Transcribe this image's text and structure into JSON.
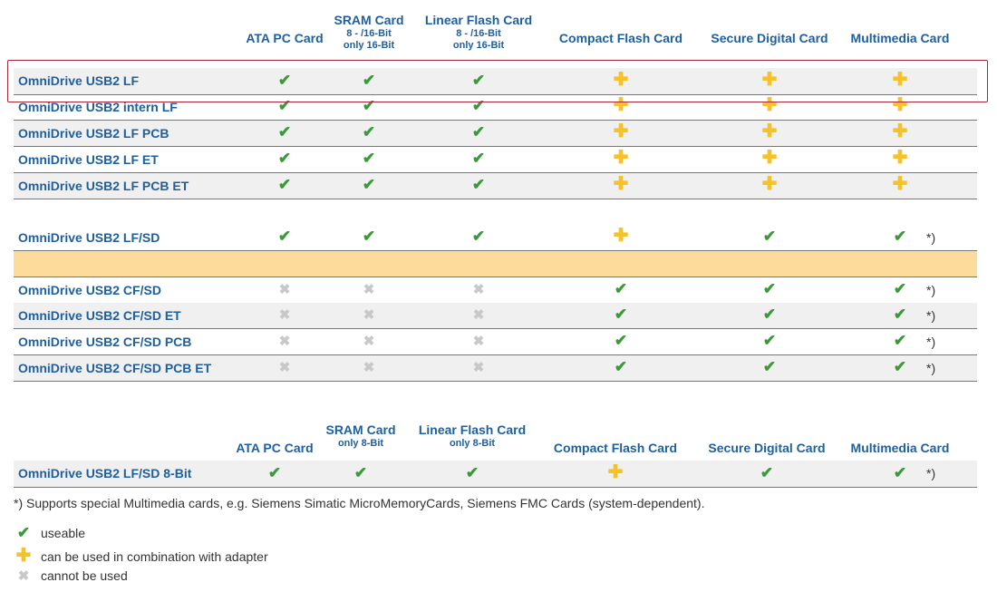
{
  "table1": {
    "headers": [
      {
        "main": "ATA PC Card",
        "sub": ""
      },
      {
        "main": "SRAM Card",
        "sub": "8 - /16-Bit\nonly 16-Bit"
      },
      {
        "main": "Linear Flash Card",
        "sub": "8 - /16-Bit\nonly 16-Bit"
      },
      {
        "main": "Compact Flash Card",
        "sub": ""
      },
      {
        "main": "Secure Digital Card",
        "sub": ""
      },
      {
        "main": "Multimedia Card",
        "sub": ""
      }
    ],
    "rows": [
      {
        "label": "OmniDrive USB2 LF",
        "cells": [
          "check",
          "check",
          "check",
          "plus",
          "plus",
          "plus"
        ],
        "note": ""
      },
      {
        "label": "OmniDrive USB2 intern LF",
        "cells": [
          "check",
          "check",
          "check",
          "plus",
          "plus",
          "plus"
        ],
        "note": ""
      },
      {
        "label": "OmniDrive USB2 LF PCB",
        "cells": [
          "check",
          "check",
          "check",
          "plus",
          "plus",
          "plus"
        ],
        "note": ""
      },
      {
        "label": "OmniDrive USB2 LF ET",
        "cells": [
          "check",
          "check",
          "check",
          "plus",
          "plus",
          "plus"
        ],
        "note": ""
      },
      {
        "label": "OmniDrive USB2 LF PCB ET",
        "cells": [
          "check",
          "check",
          "check",
          "plus",
          "plus",
          "plus"
        ],
        "note": ""
      },
      {
        "label": "OmniDrive USB2 LF/SD",
        "cells": [
          "check",
          "check",
          "check",
          "plus",
          "check",
          "check"
        ],
        "note": "*)"
      },
      {
        "label": "",
        "cells": [],
        "note": ""
      },
      {
        "label": "OmniDrive USB2 CF/SD",
        "cells": [
          "cross",
          "cross",
          "cross",
          "check",
          "check",
          "check"
        ],
        "note": "*)"
      },
      {
        "label": "OmniDrive USB2 CF/SD ET",
        "cells": [
          "cross",
          "cross",
          "cross",
          "check",
          "check",
          "check"
        ],
        "note": "*)"
      },
      {
        "label": "OmniDrive USB2 CF/SD PCB",
        "cells": [
          "cross",
          "cross",
          "cross",
          "check",
          "check",
          "check"
        ],
        "note": "*)"
      },
      {
        "label": "OmniDrive USB2 CF/SD PCB ET",
        "cells": [
          "cross",
          "cross",
          "cross",
          "check",
          "check",
          "check"
        ],
        "note": "*)"
      }
    ]
  },
  "table2": {
    "headers": [
      {
        "main": "ATA PC Card",
        "sub": ""
      },
      {
        "main": "SRAM Card",
        "sub": "only 8-Bit"
      },
      {
        "main": "Linear Flash Card",
        "sub": "only 8-Bit"
      },
      {
        "main": "Compact Flash Card",
        "sub": ""
      },
      {
        "main": "Secure Digital Card",
        "sub": ""
      },
      {
        "main": "Multimedia Card",
        "sub": ""
      }
    ],
    "rows": [
      {
        "label": "OmniDrive USB2 LF/SD 8-Bit",
        "cells": [
          "check",
          "check",
          "check",
          "plus",
          "check",
          "check"
        ],
        "note": "*)"
      }
    ]
  },
  "footnote": "*) Supports special Multimedia cards, e.g. Siemens Simatic MicroMemoryCards, Siemens FMC Cards (system-dependent).",
  "legend": [
    {
      "icon": "check",
      "text": "useable"
    },
    {
      "icon": "plus",
      "text": "can be used in combination with adapter"
    },
    {
      "icon": "cross",
      "text": "cannot be used"
    }
  ],
  "symbols": {
    "check": "✔",
    "plus": "✚",
    "cross": "✖"
  },
  "colors": {
    "header_text": "#1f5f9e",
    "check": "#3a9a3a",
    "plus": "#f5c22a",
    "cross": "#c8c8c8",
    "highlight_border": "#a3283a",
    "separator_row": "#fcdb9b"
  }
}
